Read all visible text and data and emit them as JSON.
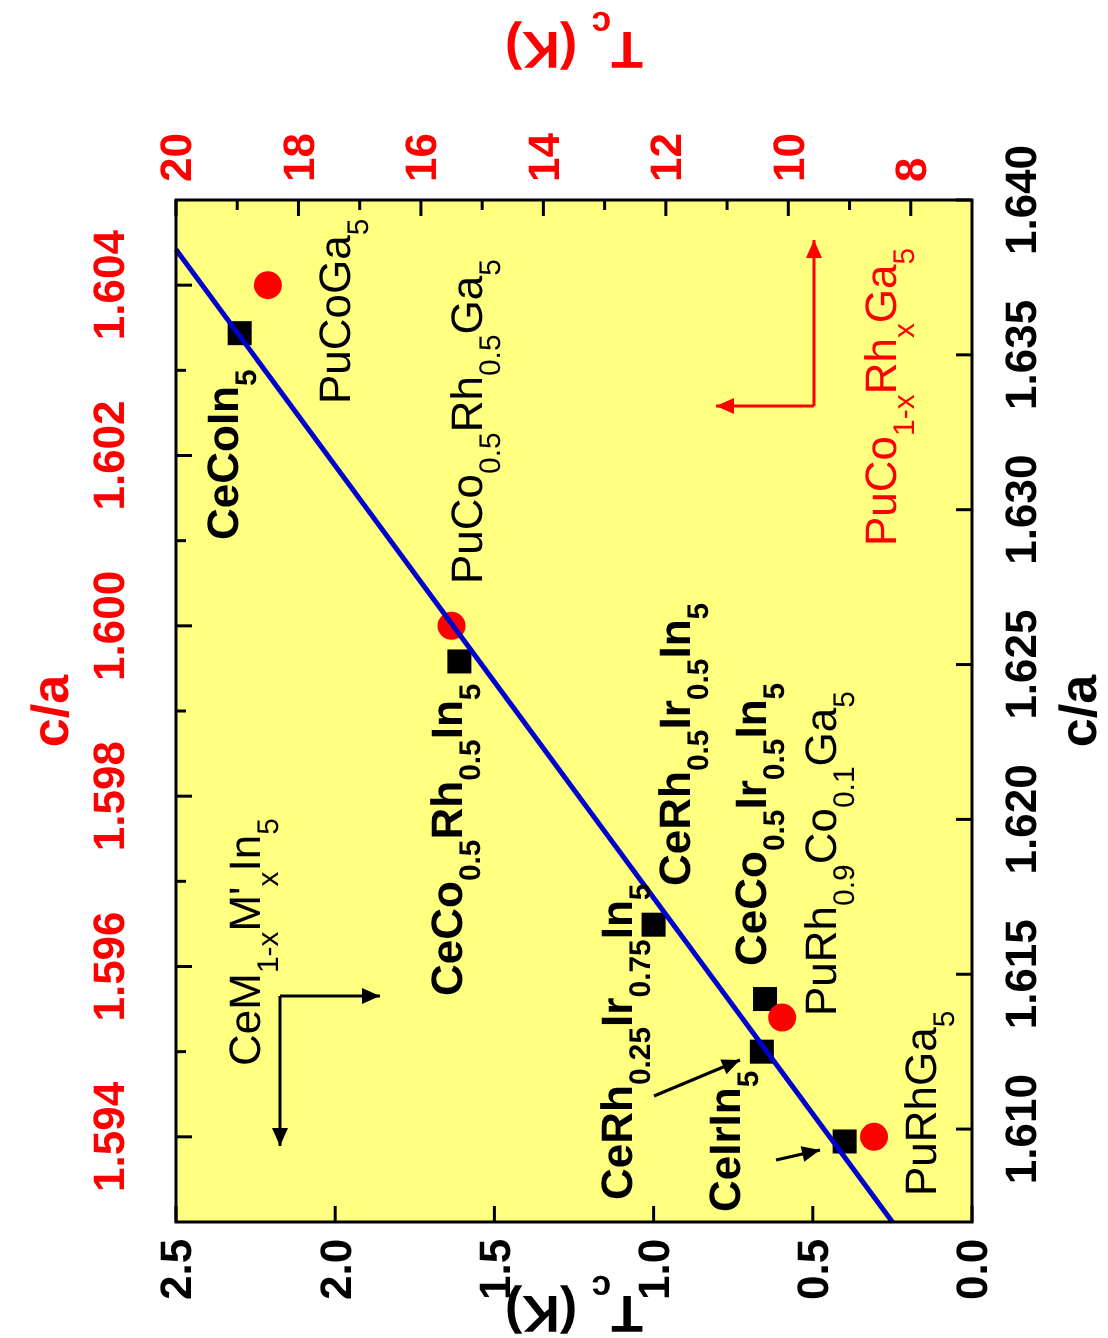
{
  "chart_data": {
    "type": "scatter",
    "xlabel": "T$_{c}$ (K)",
    "x2label": "T$_{c}$ (K)",
    "ylabel": "c/a",
    "y2label": "c/a",
    "xlim": [
      2.5,
      0
    ],
    "xticks": [
      2.5,
      {
        "value": 2,
        "label": "2.0"
      },
      1.5,
      {
        "value": 1,
        "label": "1.0"
      },
      0.5,
      {
        "value": 0,
        "label": "0.0"
      }
    ],
    "x2lim": [
      20,
      7
    ],
    "x2ticks": [
      20,
      {
        "value": 19,
        "label": null
      },
      18,
      {
        "value": 17,
        "label": null
      },
      16,
      {
        "value": 15,
        "label": null
      },
      14,
      {
        "value": 13,
        "label": null
      },
      12,
      {
        "value": 11,
        "label": null
      },
      10,
      {
        "value": 9,
        "label": null
      },
      8
    ],
    "ylim": [
      1.593,
      1.605
    ],
    "yticks": [
      1.594,
      {
        "value": 1.595,
        "label": null
      },
      1.596,
      {
        "value": 1.597,
        "label": null
      },
      1.598,
      {
        "value": 1.599,
        "label": null
      },
      {
        "value": 1.6,
        "label": "1.600"
      },
      {
        "value": 1.601,
        "label": null
      },
      1.602,
      {
        "value": 1.603,
        "label": null
      },
      1.604
    ],
    "y2lim": [
      1.607,
      1.64
    ],
    "y2ticks": [
      {
        "value": 1.61,
        "label": "1.610"
      },
      1.615,
      {
        "value": 1.62,
        "label": "1.620"
      },
      1.625,
      {
        "value": 1.63,
        "label": "1.630"
      },
      1.635,
      {
        "value": 1.64,
        "label": "1.640"
      }
    ],
    "grid": false,
    "series": [
      {
        "type": "scatter",
        "marker": "square",
        "color": "#000000",
        "axis": "y2",
        "x": [
          2.3,
          1.61,
          1.0,
          0.65,
          0.66,
          0.4
        ],
        "values": [
          1.6357,
          1.6251,
          1.6166,
          1.6142,
          1.6125,
          1.6096
        ]
      },
      {
        "type": "scatter",
        "marker": "circle",
        "color": "#ff0000",
        "axis": "x2",
        "x": [
          18.5,
          15.5,
          10.1,
          8.6
        ],
        "values": [
          1.604,
          1.6,
          1.5954,
          1.594
        ]
      },
      {
        "type": "line",
        "marker": "none",
        "line_style": "solid",
        "color": "#0000cc",
        "axis": "y2",
        "x": [
          2.5,
          0.25
        ],
        "values": [
          1.6384,
          1.607
        ]
      }
    ],
    "annotations": [
      "CeCoIn$_{5}$",
      "PuCoGa$_{5}$",
      "PuCo$_{0.5}$Rh$_{0.5}$Ga$_{5}$",
      "CeCo$_{0.5}$Rh$_{0.5}$In$_{5}$",
      "CeRh$_{0.5}$Ir$_{0.5}$In$_{5}$",
      "CeCo$_{0.5}$Ir$_{0.5}$In$_{5}$",
      "PuRh$_{0.9}$Co$_{0.1}$Ga$_{5}$",
      "CeRh$_{0.25}$Ir$_{0.75}$In$_{5}$",
      "CeIrIn$_{5}$",
      "PuRhGa$_{5}$",
      "CeM$_{1-x}$M'$_{x}$In$_{5}$",
      "PuCo$_{1-x}$Rh$_{x}$Ga$_{5}$"
    ]
  }
}
